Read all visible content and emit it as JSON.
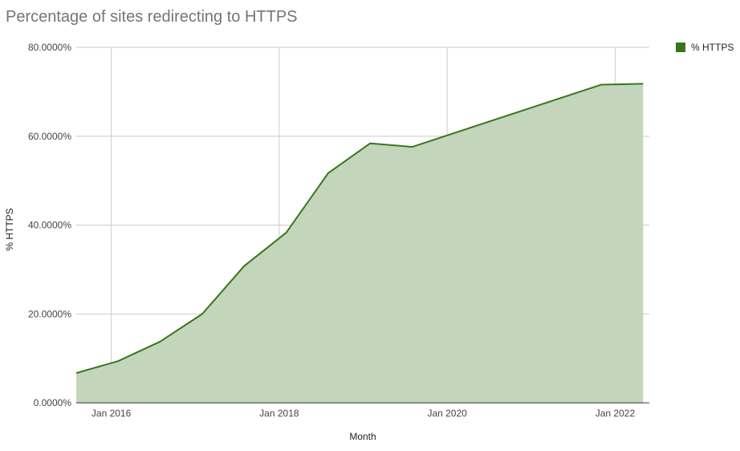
{
  "colors": {
    "series_line": "#38761d",
    "series_fill": "#c3d6bb",
    "grid": "#cccccc",
    "axis": "#333333"
  },
  "chart_data": {
    "type": "area",
    "title": "Percentage of sites redirecting to HTTPS",
    "xlabel": "Month",
    "ylabel": "% HTTPS",
    "x_ticks": [
      "Jan 2016",
      "Jan 2018",
      "Jan 2020",
      "Jan 2022"
    ],
    "y_ticks": [
      "0.0000%",
      "20.0000%",
      "40.0000%",
      "60.0000%",
      "80.0000%"
    ],
    "ylim": [
      0,
      80
    ],
    "grid": true,
    "legend_position": "top-right",
    "series": [
      {
        "name": "% HTTPS",
        "points": [
          {
            "x": "2015-08",
            "y": 6.7
          },
          {
            "x": "2016-02",
            "y": 9.4
          },
          {
            "x": "2016-08",
            "y": 13.8
          },
          {
            "x": "2017-02",
            "y": 20.0
          },
          {
            "x": "2017-08",
            "y": 30.8
          },
          {
            "x": "2018-02",
            "y": 38.3
          },
          {
            "x": "2018-08",
            "y": 51.7
          },
          {
            "x": "2019-02",
            "y": 58.4
          },
          {
            "x": "2019-08",
            "y": 57.6
          },
          {
            "x": "2021-11",
            "y": 71.6
          },
          {
            "x": "2022-05",
            "y": 71.8
          }
        ]
      }
    ]
  }
}
